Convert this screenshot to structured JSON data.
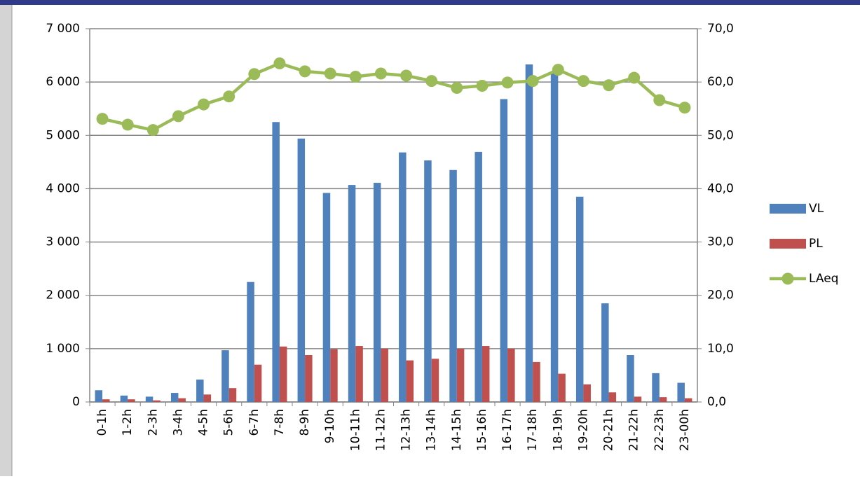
{
  "chart_data": {
    "type": "bar",
    "categories": [
      "0-1h",
      "1-2h",
      "2-3h",
      "3-4h",
      "4-5h",
      "5-6h",
      "6-7h",
      "7-8h",
      "8-9h",
      "9-10h",
      "10-11h",
      "11-12h",
      "12-13h",
      "13-14h",
      "14-15h",
      "15-16h",
      "16-17h",
      "17-18h",
      "18-19h",
      "19-20h",
      "20-21h",
      "21-22h",
      "22-23h",
      "23-00h"
    ],
    "series": [
      {
        "name": "VL",
        "color": "#4f81bd",
        "type": "bar",
        "values": [
          220,
          120,
          100,
          170,
          420,
          970,
          2250,
          5250,
          4940,
          3920,
          4070,
          4110,
          4680,
          4530,
          4350,
          4690,
          5680,
          6330,
          6200,
          3850,
          1850,
          880,
          540,
          360
        ]
      },
      {
        "name": "PL",
        "color": "#c0504d",
        "type": "bar",
        "values": [
          50,
          50,
          30,
          70,
          140,
          260,
          700,
          1040,
          880,
          990,
          1050,
          1000,
          780,
          810,
          1000,
          1050,
          1000,
          750,
          530,
          330,
          180,
          100,
          90,
          70
        ]
      },
      {
        "name": "LAeq",
        "color": "#9bbb59",
        "type": "line",
        "axis": "y2",
        "values": [
          53.1,
          52.0,
          51.0,
          53.6,
          55.8,
          57.3,
          61.5,
          63.5,
          62.0,
          61.6,
          61.0,
          61.6,
          61.2,
          60.2,
          58.9,
          59.3,
          59.9,
          60.2,
          62.3,
          60.2,
          59.4,
          60.8,
          56.6,
          55.2
        ]
      }
    ],
    "ylim": [
      0,
      7000
    ],
    "yticks": [
      0,
      {
        "value": 1000,
        "label": "1 000"
      },
      {
        "value": 2000,
        "label": "2 000"
      },
      {
        "value": 3000,
        "label": "3 000"
      },
      {
        "value": 4000,
        "label": "4 000"
      },
      {
        "value": 5000,
        "label": "5 000"
      },
      {
        "value": 6000,
        "label": "6 000"
      },
      {
        "value": 7000,
        "label": "7 000"
      }
    ],
    "y2lim": [
      0,
      70
    ],
    "y2ticks": [
      {
        "value": 0,
        "label": "0,0"
      },
      {
        "value": 10,
        "label": "10,0"
      },
      {
        "value": 20,
        "label": "20,0"
      },
      {
        "value": 30,
        "label": "30,0"
      },
      {
        "value": 40,
        "label": "40,0"
      },
      {
        "value": 50,
        "label": "50,0"
      },
      {
        "value": 60,
        "label": "60,0"
      },
      {
        "value": 70,
        "label": "70,0"
      }
    ],
    "grid": true,
    "legend": "right"
  }
}
